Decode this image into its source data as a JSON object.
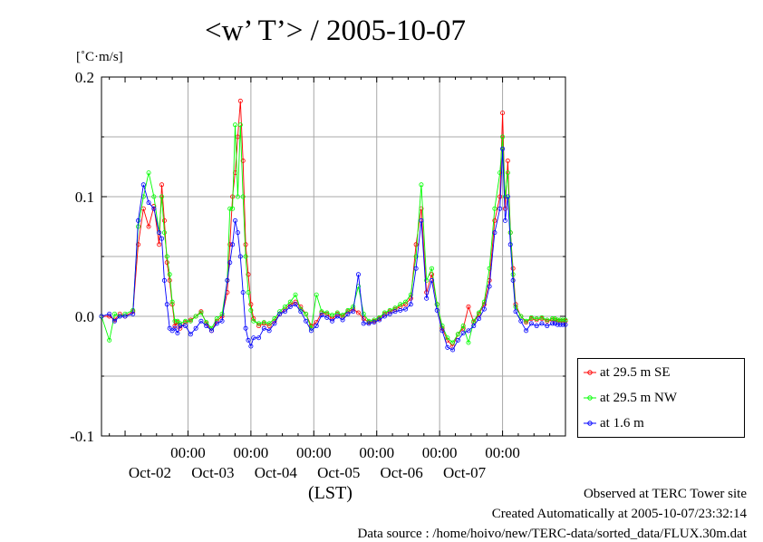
{
  "chart_data": {
    "type": "line",
    "title": "<w’ T’> / 2005-10-07",
    "ylabel": "[˚C·m/s]",
    "xlabel": "(LST)",
    "ylim": [
      -0.1,
      0.2
    ],
    "yticks": [
      "0.2",
      "0.1",
      "0.0",
      "-0.1"
    ],
    "xticks": [
      {
        "time": "00:00",
        "date": "Oct-02"
      },
      {
        "time": "00:00",
        "date": "Oct-03"
      },
      {
        "time": "00:00",
        "date": "Oct-04"
      },
      {
        "time": "00:00",
        "date": "Oct-05"
      },
      {
        "time": "00:00",
        "date": "Oct-06"
      },
      {
        "time": "00:00",
        "date": "Oct-07"
      }
    ],
    "x_unit": "hours from Oct-02 00:00 (LST)",
    "xlim": [
      -33,
      144
    ],
    "grid": true,
    "legend_position": "bottom-right",
    "series": [
      {
        "name": "at 29.5 m SE",
        "color": "#ff0000",
        "x": [
          -33,
          -30,
          -28,
          -26,
          -24,
          -21,
          -19,
          -17,
          -15,
          -13,
          -11,
          -10,
          -9,
          -8,
          -7,
          -6,
          -5,
          -4,
          -3,
          -1,
          1,
          3,
          5,
          7,
          9,
          11,
          13,
          15,
          16,
          17,
          18,
          19,
          20,
          21,
          22,
          23,
          24,
          25,
          27,
          29,
          31,
          33,
          35,
          37,
          39,
          41,
          43,
          45,
          47,
          49,
          51,
          53,
          55,
          57,
          59,
          61,
          63,
          65,
          67,
          69,
          71,
          73,
          75,
          77,
          79,
          81,
          83,
          85,
          87,
          89,
          91,
          93,
          95,
          97,
          99,
          101,
          103,
          105,
          107,
          109,
          111,
          113,
          115,
          117,
          119,
          120,
          121,
          122,
          123,
          124,
          125,
          127,
          129,
          131,
          133,
          135,
          137,
          139,
          140,
          141,
          142,
          143,
          144
        ],
        "y": [
          0,
          0,
          -0.003,
          0.002,
          0,
          0.004,
          0.06,
          0.09,
          0.075,
          0.092,
          0.06,
          0.11,
          0.08,
          0.045,
          0.03,
          0.01,
          -0.008,
          -0.005,
          -0.01,
          -0.005,
          -0.003,
          0,
          0.004,
          -0.006,
          -0.012,
          -0.004,
          0,
          0.02,
          0.06,
          0.1,
          0.12,
          0.15,
          0.18,
          0.13,
          0.06,
          0.035,
          0.01,
          -0.002,
          -0.008,
          -0.006,
          -0.008,
          -0.004,
          0.002,
          0.006,
          0.01,
          0.012,
          0.008,
          0.002,
          -0.008,
          -0.005,
          0.003,
          0.002,
          -0.002,
          0.002,
          0,
          0.004,
          0.006,
          0.003,
          -0.002,
          -0.005,
          -0.004,
          -0.002,
          0.002,
          0.004,
          0.006,
          0.008,
          0.01,
          0.015,
          0.06,
          0.09,
          0.02,
          0.035,
          0.01,
          -0.01,
          -0.02,
          -0.025,
          -0.015,
          -0.01,
          0.008,
          -0.005,
          0.002,
          0.01,
          0.03,
          0.08,
          0.1,
          0.17,
          0.09,
          0.13,
          0.07,
          0.04,
          0.01,
          0,
          -0.005,
          -0.002,
          -0.003,
          -0.002,
          -0.004,
          -0.003,
          -0.003,
          -0.004,
          -0.004,
          -0.004,
          -0.004
        ]
      },
      {
        "name": "at 29.5 m NW",
        "color": "#00ff00",
        "x": [
          -33,
          -30,
          -28,
          -26,
          -24,
          -21,
          -19,
          -17,
          -15,
          -13,
          -11,
          -10,
          -9,
          -8,
          -7,
          -6,
          -5,
          -4,
          -3,
          -1,
          1,
          3,
          5,
          7,
          9,
          11,
          13,
          15,
          16,
          17,
          18,
          19,
          20,
          21,
          22,
          23,
          24,
          25,
          27,
          29,
          31,
          33,
          35,
          37,
          39,
          41,
          43,
          45,
          47,
          49,
          51,
          53,
          55,
          57,
          59,
          61,
          63,
          65,
          67,
          69,
          71,
          73,
          75,
          77,
          79,
          81,
          83,
          85,
          87,
          89,
          91,
          93,
          95,
          97,
          99,
          101,
          103,
          105,
          107,
          109,
          111,
          113,
          115,
          117,
          119,
          120,
          121,
          122,
          123,
          124,
          125,
          127,
          129,
          131,
          133,
          135,
          137,
          139,
          140,
          141,
          142,
          143,
          144
        ],
        "y": [
          0,
          -0.02,
          0.002,
          0,
          0.002,
          0.005,
          0.075,
          0.1,
          0.12,
          0.1,
          0.07,
          0.1,
          0.07,
          0.05,
          0.035,
          0.012,
          -0.004,
          -0.004,
          -0.006,
          -0.004,
          -0.004,
          0,
          0.003,
          -0.005,
          -0.01,
          -0.002,
          0.002,
          0.03,
          0.09,
          0.09,
          0.16,
          0.1,
          0.16,
          0.1,
          0.05,
          0.02,
          0.005,
          -0.004,
          -0.006,
          -0.005,
          -0.006,
          -0.002,
          0.004,
          0.008,
          0.012,
          0.018,
          0.006,
          0.002,
          -0.01,
          0.018,
          0.004,
          0.003,
          0.001,
          0.003,
          0.001,
          0.005,
          0.008,
          0.025,
          0.002,
          -0.004,
          -0.003,
          -0.001,
          0.003,
          0.005,
          0.007,
          0.01,
          0.012,
          0.018,
          0.05,
          0.11,
          0.03,
          0.04,
          0.01,
          -0.008,
          -0.018,
          -0.022,
          -0.015,
          -0.008,
          -0.022,
          -0.004,
          0.003,
          0.012,
          0.04,
          0.09,
          0.12,
          0.15,
          0.1,
          0.12,
          0.07,
          0.035,
          0.008,
          0,
          -0.004,
          -0.001,
          -0.002,
          -0.001,
          -0.003,
          -0.002,
          -0.002,
          -0.003,
          -0.003,
          -0.003,
          -0.003
        ]
      },
      {
        "name": "at 1.6 m",
        "color": "#0000ff",
        "x": [
          -33,
          -30,
          -28,
          -26,
          -24,
          -21,
          -19,
          -17,
          -15,
          -13,
          -11,
          -10,
          -9,
          -8,
          -7,
          -6,
          -5,
          -4,
          -3,
          -1,
          1,
          3,
          5,
          7,
          9,
          11,
          13,
          15,
          16,
          17,
          18,
          19,
          20,
          21,
          22,
          23,
          24,
          25,
          27,
          29,
          31,
          33,
          35,
          37,
          39,
          41,
          43,
          45,
          47,
          49,
          51,
          53,
          55,
          57,
          59,
          61,
          63,
          65,
          67,
          69,
          71,
          73,
          75,
          77,
          79,
          81,
          83,
          85,
          87,
          89,
          91,
          93,
          95,
          97,
          99,
          101,
          103,
          105,
          107,
          109,
          111,
          113,
          115,
          117,
          119,
          120,
          121,
          122,
          123,
          124,
          125,
          127,
          129,
          131,
          133,
          135,
          137,
          139,
          140,
          141,
          142,
          143,
          144
        ],
        "y": [
          0,
          0.002,
          -0.004,
          0,
          0,
          0.002,
          0.08,
          0.11,
          0.095,
          0.09,
          0.07,
          0.065,
          0.03,
          0.01,
          -0.01,
          -0.012,
          -0.01,
          -0.014,
          -0.008,
          -0.008,
          -0.015,
          -0.01,
          -0.004,
          -0.008,
          -0.012,
          -0.006,
          -0.004,
          0.03,
          0.045,
          0.06,
          0.08,
          0.07,
          0.05,
          0.02,
          -0.01,
          -0.02,
          -0.025,
          -0.018,
          -0.018,
          -0.01,
          -0.012,
          -0.006,
          0.002,
          0.004,
          0.008,
          0.01,
          0.004,
          -0.004,
          -0.012,
          -0.008,
          0.001,
          -0.001,
          -0.004,
          0,
          -0.003,
          0.002,
          0.004,
          0.035,
          -0.006,
          -0.006,
          -0.005,
          -0.003,
          0,
          0.002,
          0.004,
          0.005,
          0.006,
          0.01,
          0.04,
          0.08,
          0.015,
          0.03,
          0.005,
          -0.012,
          -0.026,
          -0.028,
          -0.02,
          -0.014,
          -0.012,
          -0.008,
          -0.002,
          0.006,
          0.025,
          0.07,
          0.09,
          0.14,
          0.08,
          0.1,
          0.06,
          0.03,
          0.004,
          -0.004,
          -0.012,
          -0.006,
          -0.008,
          -0.006,
          -0.008,
          -0.006,
          -0.006,
          -0.007,
          -0.007,
          -0.007,
          -0.007
        ]
      }
    ]
  },
  "footer": {
    "observed": "Observed at TERC Tower site",
    "created": "Created Automatically at 2005-10-07/23:32:14",
    "source": "Data source : /home/hoivo/new/TERC-data/sorted_data/FLUX.30m.dat"
  }
}
